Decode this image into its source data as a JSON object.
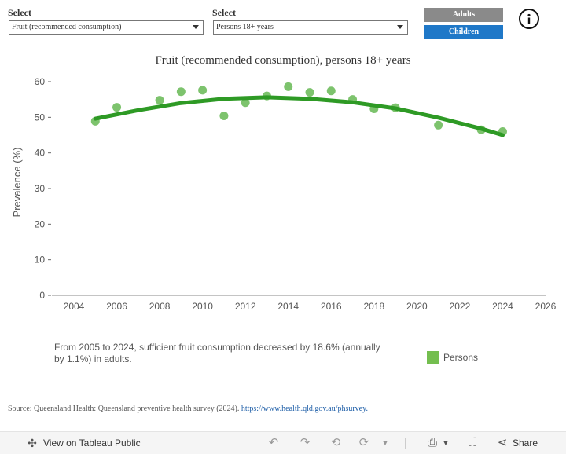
{
  "filters": {
    "indicator": {
      "label": "Select",
      "value": "Fruit (recommended consumption)"
    },
    "population": {
      "label": "Select",
      "value": "Persons 18+ years"
    }
  },
  "toggle": {
    "adults_label": "Adults",
    "children_label": "Children",
    "active": "Children"
  },
  "info_icon": "info-circle-icon",
  "chart_data": {
    "type": "scatter",
    "title": "Fruit (recommended consumption), persons 18+ years",
    "ylabel": "Prevalence (%)",
    "xlabel": "",
    "xlim": [
      2003,
      2026
    ],
    "ylim": [
      0,
      60
    ],
    "xticks": [
      2004,
      2006,
      2008,
      2010,
      2012,
      2014,
      2016,
      2018,
      2020,
      2022,
      2024,
      2026
    ],
    "yticks": [
      0,
      10,
      20,
      30,
      40,
      50,
      60
    ],
    "grid": false,
    "series": [
      {
        "name": "Persons",
        "color": "#7dc36d",
        "x": [
          2005,
          2006,
          2008,
          2009,
          2010,
          2011,
          2012,
          2013,
          2014,
          2015,
          2016,
          2017,
          2018,
          2019,
          2021,
          2023,
          2024
        ],
        "y": [
          48.9,
          52.8,
          54.8,
          57.2,
          57.6,
          50.4,
          54.1,
          56.0,
          58.6,
          57.0,
          57.4,
          55.0,
          52.4,
          52.7,
          47.8,
          46.5,
          46.0
        ]
      }
    ],
    "trend": {
      "color": "#2e9a25",
      "x": [
        2005,
        2007,
        2009,
        2011,
        2013,
        2015,
        2017,
        2019,
        2021,
        2023,
        2024
      ],
      "y": [
        49.6,
        52.0,
        54.0,
        55.2,
        55.6,
        55.2,
        54.2,
        52.5,
        49.9,
        46.8,
        45.0
      ]
    },
    "legend": {
      "label": "Persons",
      "placement": "bottom-right",
      "color": "#74be4f"
    }
  },
  "note": "From 2005 to 2024, sufficient fruit consumption decreased by 18.6% (annually by 1.1%) in adults.",
  "source": {
    "text": "Source: Queensland Health: Queensland preventive health survey (2024).",
    "link": "https://www.health.qld.gov.au/phsurvey."
  },
  "toolbar": {
    "view_label": "View on Tableau Public",
    "share_label": "Share"
  }
}
